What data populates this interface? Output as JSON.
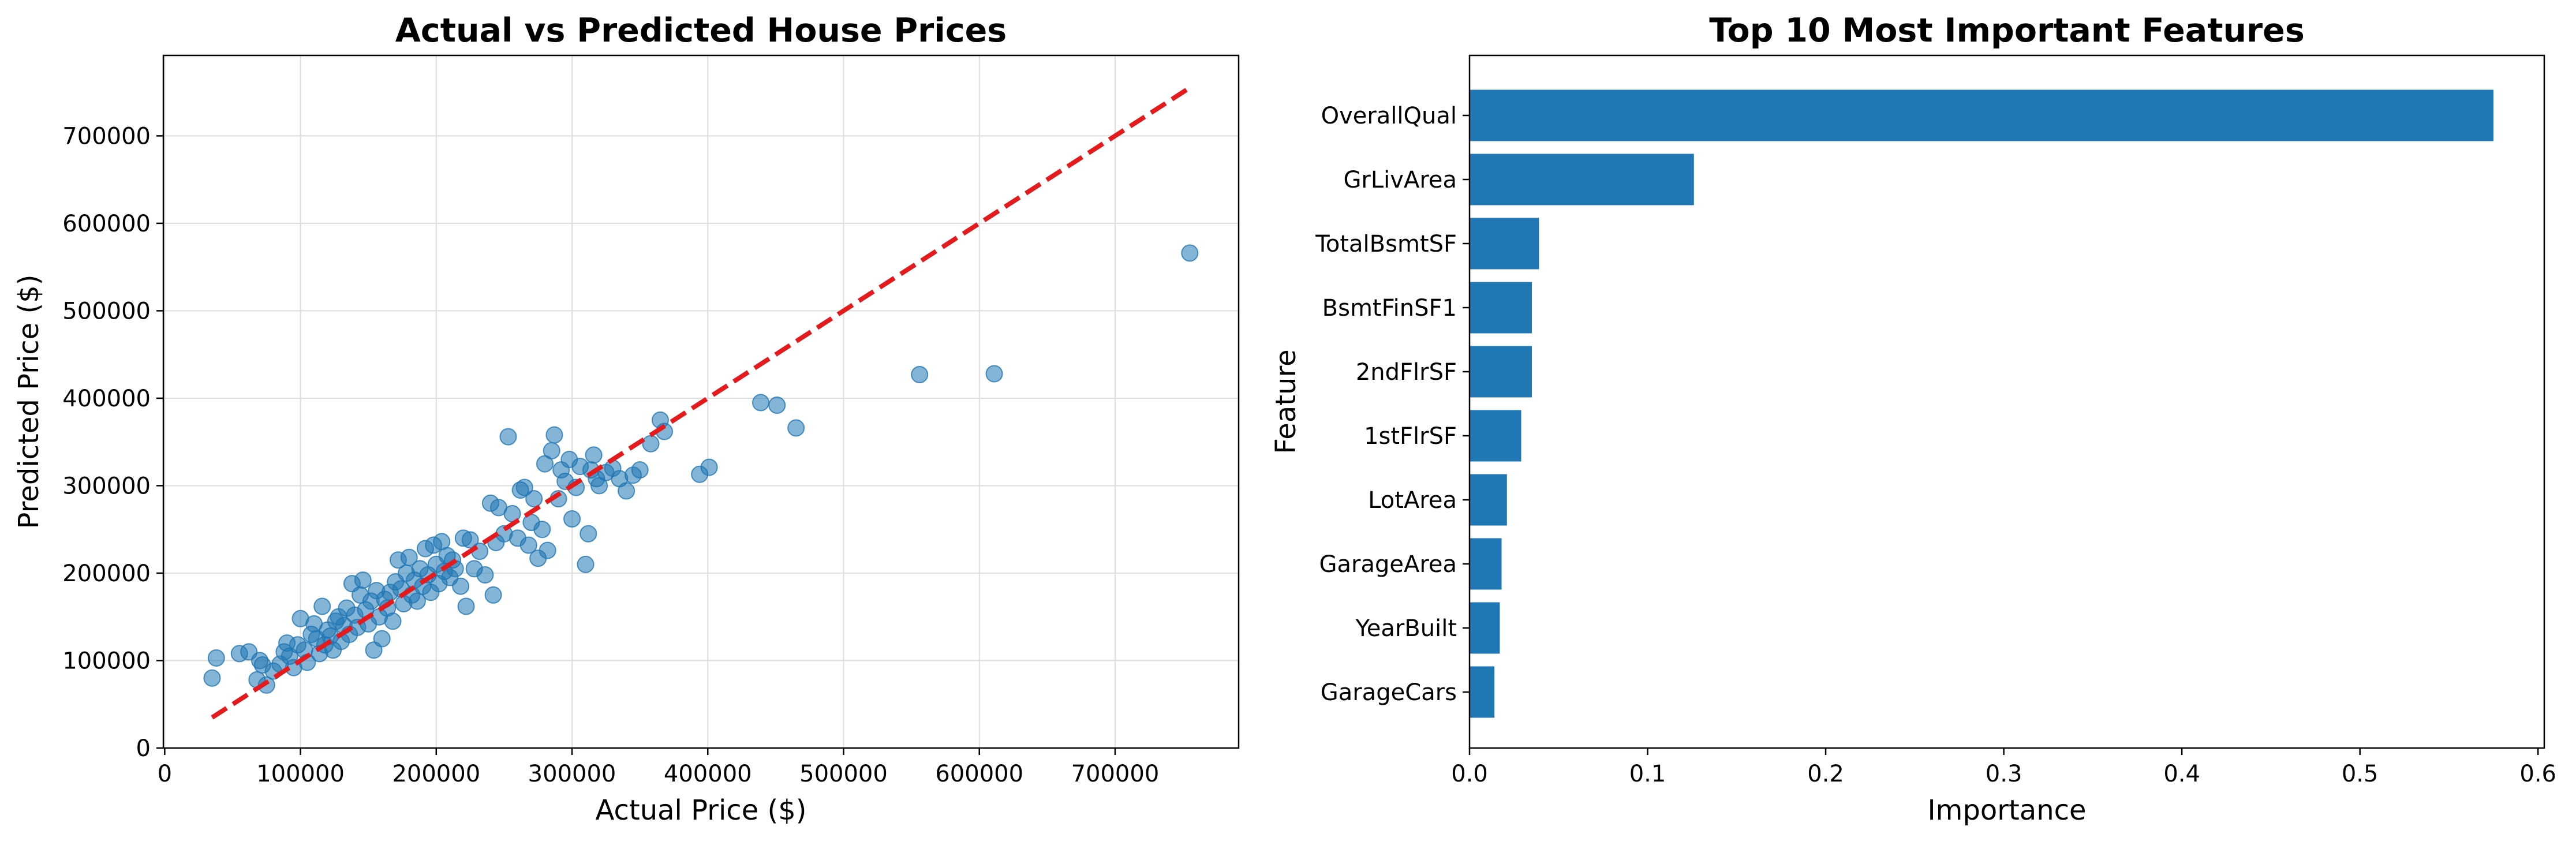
{
  "chart_data": [
    {
      "type": "scatter",
      "title": "Actual vs Predicted House Prices",
      "xlabel": "Actual Price ($)",
      "ylabel": "Predicted Price ($)",
      "xlim": [
        -1000,
        791000
      ],
      "ylim": [
        0,
        792000
      ],
      "xticks": [
        0,
        100000,
        200000,
        300000,
        400000,
        500000,
        600000,
        700000
      ],
      "yticks": [
        0,
        100000,
        200000,
        300000,
        400000,
        500000,
        600000,
        700000
      ],
      "grid": true,
      "point_color": "#1f77b4",
      "reference_line": {
        "x": [
          34900,
          755000
        ],
        "y": [
          34900,
          755000
        ],
        "color": "#e41a1c",
        "style": "dashed"
      },
      "points": [
        [
          34900,
          80000
        ],
        [
          38000,
          103000
        ],
        [
          55000,
          108000
        ],
        [
          62000,
          110000
        ],
        [
          68000,
          78000
        ],
        [
          70000,
          100000
        ],
        [
          72000,
          95000
        ],
        [
          75000,
          72000
        ],
        [
          80000,
          88000
        ],
        [
          85000,
          96000
        ],
        [
          88000,
          110000
        ],
        [
          90000,
          120000
        ],
        [
          92000,
          105000
        ],
        [
          95000,
          92000
        ],
        [
          98000,
          118000
        ],
        [
          100000,
          148000
        ],
        [
          103000,
          112000
        ],
        [
          105000,
          98000
        ],
        [
          108000,
          130000
        ],
        [
          110000,
          142000
        ],
        [
          112000,
          125000
        ],
        [
          114000,
          108000
        ],
        [
          116000,
          162000
        ],
        [
          118000,
          118000
        ],
        [
          120000,
          135000
        ],
        [
          122000,
          128000
        ],
        [
          124000,
          112000
        ],
        [
          126000,
          145000
        ],
        [
          128000,
          150000
        ],
        [
          130000,
          122000
        ],
        [
          132000,
          140000
        ],
        [
          134000,
          160000
        ],
        [
          136000,
          130000
        ],
        [
          138000,
          188000
        ],
        [
          140000,
          152000
        ],
        [
          142000,
          138000
        ],
        [
          144000,
          175000
        ],
        [
          146000,
          192000
        ],
        [
          148000,
          158000
        ],
        [
          150000,
          142000
        ],
        [
          152000,
          168000
        ],
        [
          154000,
          112000
        ],
        [
          156000,
          180000
        ],
        [
          158000,
          150000
        ],
        [
          160000,
          125000
        ],
        [
          162000,
          170000
        ],
        [
          164000,
          160000
        ],
        [
          166000,
          178000
        ],
        [
          168000,
          145000
        ],
        [
          170000,
          190000
        ],
        [
          172000,
          215000
        ],
        [
          174000,
          182000
        ],
        [
          176000,
          165000
        ],
        [
          178000,
          200000
        ],
        [
          180000,
          218000
        ],
        [
          182000,
          175000
        ],
        [
          184000,
          192000
        ],
        [
          186000,
          168000
        ],
        [
          188000,
          205000
        ],
        [
          190000,
          185000
        ],
        [
          192000,
          228000
        ],
        [
          194000,
          198000
        ],
        [
          196000,
          178000
        ],
        [
          198000,
          232000
        ],
        [
          200000,
          210000
        ],
        [
          202000,
          188000
        ],
        [
          204000,
          236000
        ],
        [
          206000,
          202000
        ],
        [
          208000,
          220000
        ],
        [
          210000,
          195000
        ],
        [
          212000,
          215000
        ],
        [
          214000,
          205000
        ],
        [
          218000,
          185000
        ],
        [
          220000,
          240000
        ],
        [
          222000,
          162000
        ],
        [
          225000,
          238000
        ],
        [
          228000,
          205000
        ],
        [
          232000,
          225000
        ],
        [
          236000,
          198000
        ],
        [
          240000,
          280000
        ],
        [
          242000,
          175000
        ],
        [
          244000,
          235000
        ],
        [
          246000,
          275000
        ],
        [
          250000,
          245000
        ],
        [
          253000,
          356000
        ],
        [
          256000,
          268000
        ],
        [
          260000,
          240000
        ],
        [
          262000,
          295000
        ],
        [
          265000,
          298000
        ],
        [
          268000,
          232000
        ],
        [
          270000,
          258000
        ],
        [
          272000,
          285000
        ],
        [
          275000,
          217000
        ],
        [
          278000,
          250000
        ],
        [
          280000,
          325000
        ],
        [
          282000,
          226000
        ],
        [
          285000,
          340000
        ],
        [
          287000,
          358000
        ],
        [
          290000,
          285000
        ],
        [
          292000,
          318000
        ],
        [
          295000,
          305000
        ],
        [
          298000,
          330000
        ],
        [
          300000,
          262000
        ],
        [
          303000,
          298000
        ],
        [
          306000,
          322000
        ],
        [
          310000,
          210000
        ],
        [
          312000,
          245000
        ],
        [
          314000,
          318000
        ],
        [
          316000,
          335000
        ],
        [
          318000,
          308000
        ],
        [
          320000,
          300000
        ],
        [
          325000,
          315000
        ],
        [
          330000,
          320000
        ],
        [
          335000,
          308000
        ],
        [
          340000,
          294000
        ],
        [
          345000,
          312000
        ],
        [
          350000,
          318000
        ],
        [
          358000,
          348000
        ],
        [
          365000,
          375000
        ],
        [
          368000,
          362000
        ],
        [
          394000,
          313000
        ],
        [
          401000,
          321000
        ],
        [
          439000,
          395000
        ],
        [
          451000,
          392000
        ],
        [
          465000,
          366000
        ],
        [
          556000,
          427000
        ],
        [
          611000,
          428000
        ],
        [
          755000,
          566000
        ]
      ]
    },
    {
      "type": "bar",
      "orientation": "horizontal",
      "title": "Top 10 Most Important Features",
      "xlabel": "Importance",
      "ylabel": "Feature",
      "xlim": [
        0,
        0.6035
      ],
      "xticks": [
        0.0,
        0.1,
        0.2,
        0.3,
        0.4,
        0.5,
        0.6
      ],
      "xtick_labels": [
        "0.0",
        "0.1",
        "0.2",
        "0.3",
        "0.4",
        "0.5",
        "0.6"
      ],
      "grid": false,
      "bar_color": "#1f77b4",
      "categories": [
        "OverallQual",
        "GrLivArea",
        "TotalBsmtSF",
        "BsmtFinSF1",
        "2ndFlrSF",
        "1stFlrSF",
        "LotArea",
        "GarageArea",
        "YearBuilt",
        "GarageCars"
      ],
      "values": [
        0.575,
        0.126,
        0.039,
        0.035,
        0.035,
        0.029,
        0.021,
        0.018,
        0.017,
        0.014
      ]
    }
  ]
}
